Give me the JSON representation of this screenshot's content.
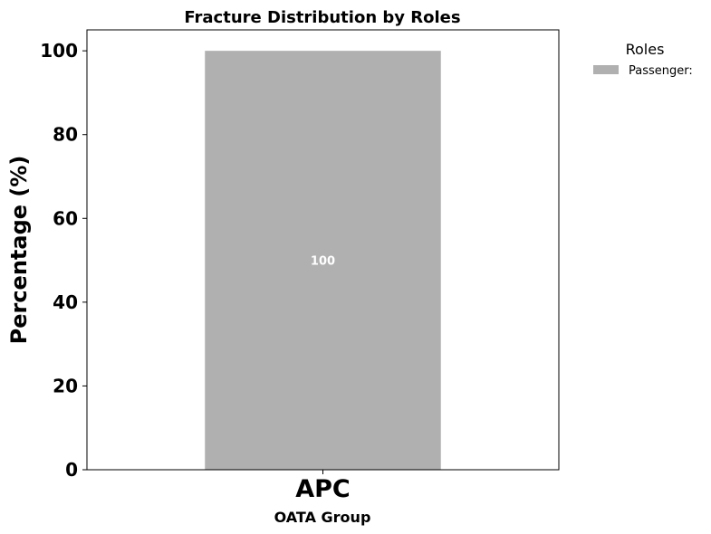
{
  "chart_data": {
    "type": "bar",
    "title": "Fracture Distribution by Roles",
    "xlabel": "OATA Group",
    "ylabel": "Percentage (%)",
    "categories": [
      "APC"
    ],
    "series": [
      {
        "name": "Passenger:",
        "values": [
          100
        ],
        "color": "#b0b0b0"
      }
    ],
    "ylim": [
      0,
      105
    ],
    "yticks": [
      0,
      20,
      40,
      60,
      80,
      100
    ],
    "legend": {
      "title": "Roles",
      "position": "outside-top-right"
    },
    "grid": false,
    "data_label_color": "#ffffff"
  }
}
